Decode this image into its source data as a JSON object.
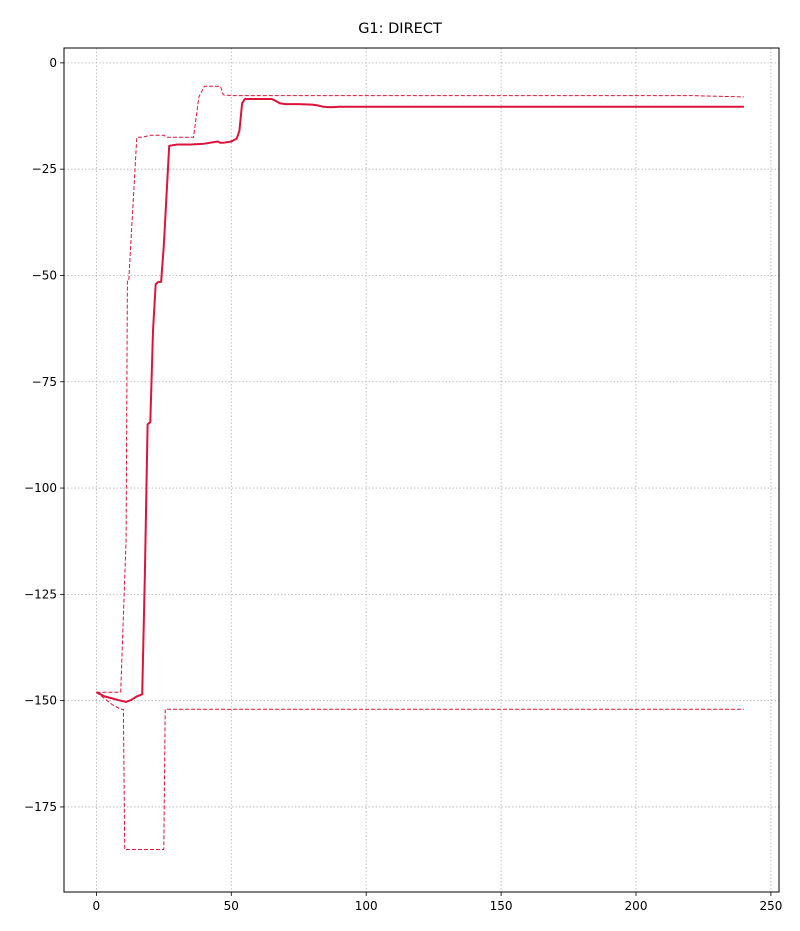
{
  "chart_data": {
    "type": "line",
    "title": "G1: DIRECT",
    "xlabel": "",
    "ylabel": "",
    "xlim": [
      -12,
      253
    ],
    "ylim": [
      -195,
      3.5
    ],
    "xticks": [
      0,
      50,
      100,
      150,
      200,
      250
    ],
    "yticks": [
      0,
      -25,
      -50,
      -75,
      -100,
      -125,
      -150,
      -175
    ],
    "xtick_labels": [
      "0",
      "50",
      "100",
      "150",
      "200",
      "250"
    ],
    "ytick_labels": [
      "0",
      "−25",
      "−50",
      "−75",
      "−100",
      "−125",
      "−150",
      "−175"
    ],
    "grid": true,
    "line_color": "#dc143c",
    "series": [
      {
        "style": "solid",
        "x": [
          0,
          3,
          6,
          9,
          11,
          13,
          15,
          17,
          18,
          19,
          20,
          21,
          22,
          23,
          24,
          25,
          27,
          30,
          35,
          40,
          45,
          46,
          47,
          50,
          52,
          53,
          54,
          55,
          56,
          60,
          65,
          66,
          68,
          70,
          75,
          80,
          82,
          84,
          86,
          88,
          90,
          100,
          120,
          150,
          200,
          240
        ],
        "y": [
          -148,
          -149,
          -149.5,
          -150,
          -150.3,
          -149.8,
          -149,
          -148.5,
          -120,
          -85,
          -84.5,
          -63,
          -52,
          -51.5,
          -51.5,
          -43,
          -19.5,
          -19.2,
          -19.2,
          -19,
          -18.5,
          -18.8,
          -18.8,
          -18.5,
          -17.8,
          -16,
          -9.5,
          -8.5,
          -8.5,
          -8.5,
          -8.5,
          -8.8,
          -9.5,
          -9.7,
          -9.7,
          -9.8,
          -10,
          -10.3,
          -10.4,
          -10.4,
          -10.3,
          -10.3,
          -10.3,
          -10.3,
          -10.3,
          -10.3
        ]
      },
      {
        "style": "dashed",
        "x": [
          0,
          9,
          11,
          11.5,
          12,
          15,
          16,
          16.5,
          17,
          20,
          21,
          25,
          26,
          36,
          38,
          40,
          46,
          47,
          50,
          100,
          150,
          220,
          240
        ],
        "y": [
          -148,
          -148,
          -112,
          -51,
          -51,
          -17.5,
          -17.5,
          -17.5,
          -17.5,
          -17,
          -17,
          -17,
          -17.5,
          -17.5,
          -8,
          -5.5,
          -5.5,
          -7.5,
          -7.7,
          -7.7,
          -7.7,
          -7.7,
          -8
        ]
      },
      {
        "style": "dashed",
        "x": [
          0,
          2,
          4,
          6,
          9,
          10,
          10.5,
          11,
          16,
          20,
          25,
          25.5,
          26,
          30,
          50,
          100,
          150,
          200,
          240
        ],
        "y": [
          -148,
          -149,
          -150,
          -151,
          -152,
          -152,
          -185,
          -185,
          -185,
          -185,
          -185,
          -152,
          -152,
          -152,
          -152,
          -152,
          -152,
          -152,
          -152
        ]
      }
    ]
  }
}
